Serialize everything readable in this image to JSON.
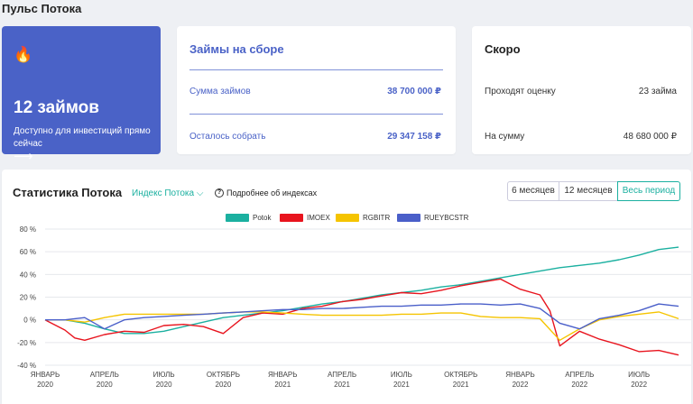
{
  "page": {
    "title": "Пульс Потока"
  },
  "hero": {
    "icon": "fire-icon",
    "icon_glyph": "🔥",
    "count": "12 займов",
    "description": "Доступно для инвестиций прямо сейчас",
    "arrow": "⟶"
  },
  "loans": {
    "title": "Займы на сборе",
    "rows": [
      {
        "label": "Сумма займов",
        "value": "38 700 000 ₽"
      },
      {
        "label": "Осталось собрать",
        "value": "29 347 158 ₽"
      }
    ]
  },
  "soon": {
    "title": "Скоро",
    "rows": [
      {
        "label": "Проходят оценку",
        "value": "23 займа"
      },
      {
        "label": "На сумму",
        "value": "48 680 000 ₽"
      }
    ]
  },
  "stats": {
    "title": "Статистика Потока",
    "index_dropdown": "Индекс Потока",
    "help_link": "Подробнее об индексах",
    "periods": [
      "6 месяцев",
      "12 месяцев",
      "Весь период"
    ],
    "active_period": "Весь период"
  },
  "colors": {
    "accent": "#4a62c7",
    "teal": "#1bb0a0"
  },
  "chart_data": {
    "type": "line",
    "title": "",
    "xlabel": "",
    "ylabel": "",
    "ylim": [
      -40,
      80
    ],
    "yticks": [
      "80 %",
      "60 %",
      "40 %",
      "20 %",
      "0 %",
      "-20 %",
      "-40 %"
    ],
    "ytick_values": [
      80,
      60,
      40,
      20,
      0,
      -20,
      -40
    ],
    "xticks": [
      [
        "ЯНВАРЬ",
        "2020"
      ],
      [
        "АПРЕЛЬ",
        "2020"
      ],
      [
        "ИЮЛЬ",
        "2020"
      ],
      [
        "ОКТЯБРЬ",
        "2020"
      ],
      [
        "ЯНВАРЬ",
        "2021"
      ],
      [
        "АПРЕЛЬ",
        "2021"
      ],
      [
        "ИЮЛЬ",
        "2021"
      ],
      [
        "ОКТЯБРЬ",
        "2021"
      ],
      [
        "ЯНВАРЬ",
        "2022"
      ],
      [
        "АПРЕЛЬ",
        "2022"
      ],
      [
        "ИЮЛЬ",
        "2022"
      ]
    ],
    "x_months": 32,
    "legend_position": "top-center",
    "grid": true,
    "series": [
      {
        "name": "Potok",
        "color": "#1bb0a0",
        "x": [
          0,
          1,
          2,
          3,
          4,
          5,
          6,
          7,
          8,
          9,
          10,
          11,
          12,
          13,
          14,
          15,
          16,
          17,
          18,
          19,
          20,
          21,
          22,
          23,
          24,
          25,
          26,
          27,
          28,
          29,
          30,
          31,
          32
        ],
        "values": [
          0,
          0,
          -3,
          -8,
          -12,
          -12,
          -10,
          -6,
          -2,
          2,
          4,
          6,
          8,
          11,
          14,
          16,
          19,
          22,
          24,
          26,
          29,
          31,
          34,
          37,
          40,
          43,
          46,
          48,
          50,
          53,
          57,
          62,
          64
        ]
      },
      {
        "name": "IMOEX",
        "color": "#e8141e",
        "x": [
          0,
          1,
          1.5,
          2,
          3,
          4,
          5,
          6,
          7,
          8,
          9,
          10,
          11,
          12,
          13,
          14,
          15,
          16,
          17,
          18,
          19,
          20,
          21,
          22,
          23,
          24,
          25,
          25.5,
          26,
          27,
          28,
          29,
          30,
          31,
          32
        ],
        "values": [
          0,
          -9,
          -16,
          -18,
          -13,
          -10,
          -11,
          -5,
          -4,
          -6,
          -12,
          2,
          6,
          5,
          10,
          12,
          16,
          18,
          21,
          24,
          23,
          26,
          30,
          33,
          36,
          27,
          22,
          8,
          -23,
          -10,
          -17,
          -22,
          -28,
          -27,
          -31
        ]
      },
      {
        "name": "RGBITR",
        "color": "#f5c400",
        "x": [
          0,
          1,
          2,
          3,
          4,
          5,
          6,
          7,
          8,
          9,
          10,
          11,
          12,
          13,
          14,
          15,
          16,
          17,
          18,
          19,
          20,
          21,
          22,
          23,
          24,
          25,
          26,
          27,
          28,
          29,
          30,
          31,
          32
        ],
        "values": [
          0,
          0,
          -2,
          2,
          5,
          5,
          5,
          5,
          5,
          6,
          7,
          7,
          6,
          5,
          4,
          4,
          4,
          4,
          5,
          5,
          6,
          6,
          3,
          2,
          2,
          1,
          -18,
          -8,
          0,
          3,
          5,
          7,
          1
        ]
      },
      {
        "name": "RUEYBCSTR",
        "color": "#4a5fc9",
        "x": [
          0,
          1,
          2,
          3,
          4,
          5,
          6,
          7,
          8,
          9,
          10,
          11,
          12,
          13,
          14,
          15,
          16,
          17,
          18,
          19,
          20,
          21,
          22,
          23,
          24,
          25,
          26,
          27,
          28,
          29,
          30,
          31,
          32
        ],
        "values": [
          0,
          0,
          2,
          -8,
          0,
          2,
          3,
          4,
          5,
          6,
          7,
          8,
          9,
          9,
          10,
          10,
          11,
          12,
          12,
          13,
          13,
          14,
          14,
          13,
          14,
          10,
          -3,
          -8,
          1,
          4,
          8,
          14,
          12
        ]
      }
    ]
  }
}
